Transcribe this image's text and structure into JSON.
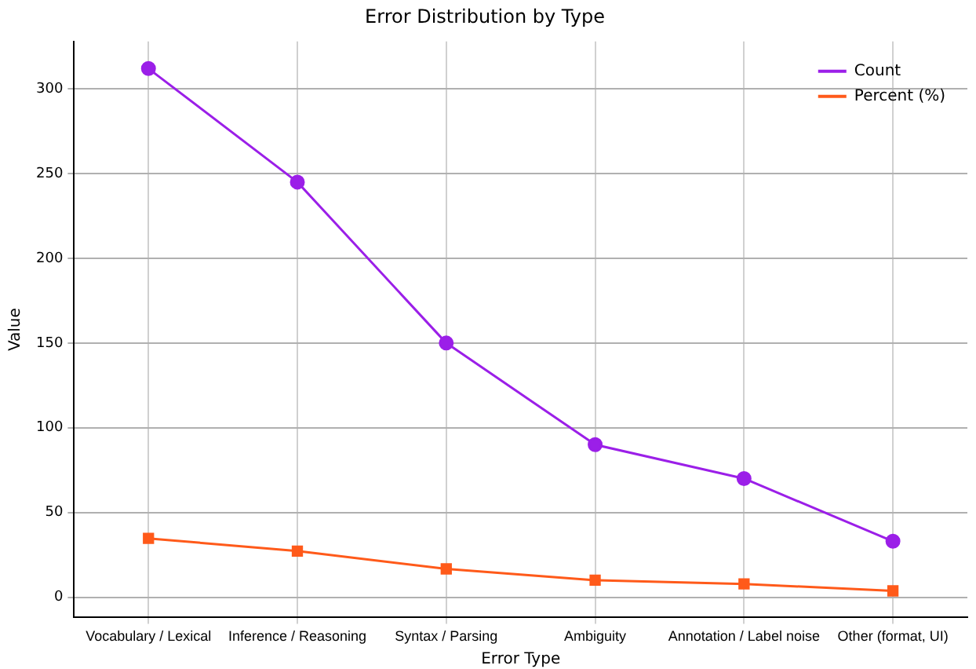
{
  "chart_data": {
    "type": "line",
    "title": "Error Distribution by Type",
    "xlabel": "Error Type",
    "ylabel": "Value",
    "categories": [
      "Vocabulary / Lexical",
      "Inference / Reasoning",
      "Syntax / Parsing",
      "Ambiguity",
      "Annotation / Label noise",
      "Other (format, UI)"
    ],
    "series": [
      {
        "name": "Count",
        "color": "#9b1fe8",
        "marker": "circle",
        "values": [
          312,
          245,
          150,
          90,
          70,
          33
        ]
      },
      {
        "name": "Percent (%)",
        "color": "#ff5a1a",
        "marker": "square",
        "values": [
          34.7,
          27.2,
          16.7,
          10,
          7.8,
          3.7
        ]
      }
    ],
    "ylim": [
      -12,
      328
    ],
    "yticks": [
      0,
      50,
      100,
      150,
      200,
      250,
      300
    ],
    "grid": true,
    "legend": "top right",
    "line_style": "solid"
  }
}
